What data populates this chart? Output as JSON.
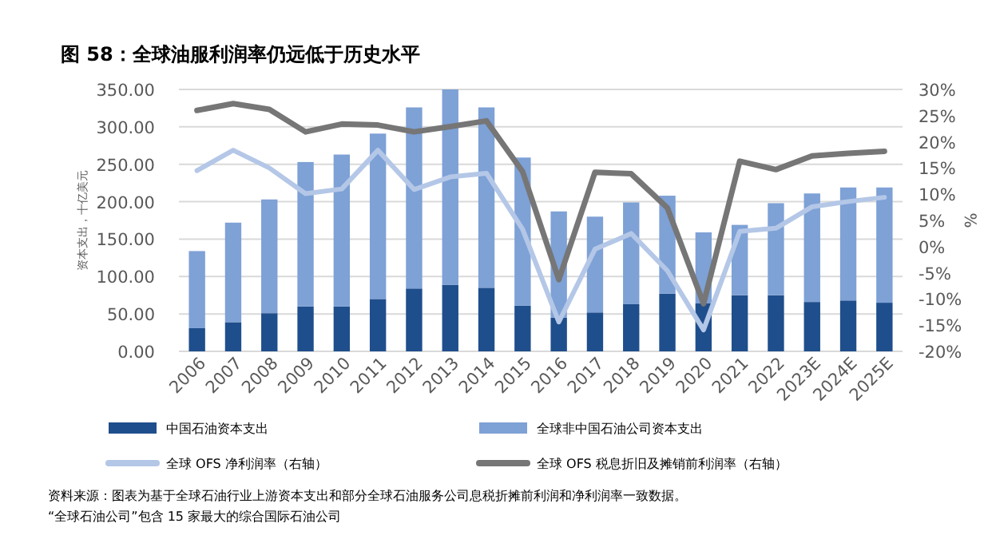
{
  "chart_data": {
    "type": "bar",
    "title": "图 58：全球油服利润率仍远低于历史水平",
    "ylabel": "资本支出，十亿美元",
    "y2label": "%",
    "categories": [
      "2006",
      "2007",
      "2008",
      "2009",
      "2010",
      "2011",
      "2012",
      "2013",
      "2014",
      "2015",
      "2016",
      "2017",
      "2018",
      "2019",
      "2020",
      "2021",
      "2022",
      "2023E",
      "2024E",
      "2025E"
    ],
    "stacked": true,
    "series": [
      {
        "name": "中国石油资本支出",
        "color": "#1f4e8c",
        "values": [
          31,
          39,
          51,
          60,
          60,
          70,
          84,
          89,
          85,
          61,
          45,
          52,
          63,
          77,
          64,
          75,
          75,
          66,
          68,
          65
        ]
      },
      {
        "name": "全球非中国石油公司资本支出",
        "color": "#7ea1d6",
        "values": [
          103,
          133,
          152,
          193,
          203,
          221,
          242,
          261,
          241,
          198,
          142,
          128,
          136,
          131,
          95,
          94,
          123,
          145,
          151,
          154
        ]
      },
      {
        "name": "全球 OFS 净利润率（右轴）",
        "type": "line",
        "axis": "y2",
        "color": "#b4c7e7",
        "values": [
          14.5,
          18.4,
          15.0,
          10.1,
          11.0,
          18.4,
          10.9,
          13.3,
          14.0,
          3.3,
          -14.4,
          -0.5,
          2.5,
          -4.6,
          -15.9,
          2.9,
          3.5,
          7.6,
          8.6,
          9.4
        ]
      },
      {
        "name": "全球 OFS 税息折旧及摊销前利润率（右轴）",
        "type": "line",
        "axis": "y2",
        "color": "#767676",
        "values": [
          26.0,
          27.3,
          26.2,
          21.9,
          23.4,
          23.2,
          21.9,
          22.9,
          24.0,
          14.3,
          -6.3,
          14.2,
          13.9,
          7.4,
          -10.9,
          16.3,
          14.7,
          17.3,
          17.8,
          18.2
        ]
      }
    ],
    "ylim": [
      0,
      350
    ],
    "yticks": [
      {
        "value": 0,
        "label": "0.00"
      },
      {
        "value": 50,
        "label": "50.00"
      },
      {
        "value": 100,
        "label": "100.00"
      },
      {
        "value": 150,
        "label": "150.00"
      },
      {
        "value": 200,
        "label": "200.00"
      },
      {
        "value": 250,
        "label": "250.00"
      },
      {
        "value": 300,
        "label": "300.00"
      },
      {
        "value": 350,
        "label": "350.00"
      }
    ],
    "y2lim": [
      -20,
      30
    ],
    "y2ticks": [
      {
        "value": -20,
        "label": "-20%"
      },
      {
        "value": -15,
        "label": "-15%"
      },
      {
        "value": -10,
        "label": "-10%"
      },
      {
        "value": -5,
        "label": "-5%"
      },
      {
        "value": 0,
        "label": "0%"
      },
      {
        "value": 5,
        "label": "5%"
      },
      {
        "value": 10,
        "label": "10%"
      },
      {
        "value": 15,
        "label": "15%"
      },
      {
        "value": 20,
        "label": "20%"
      },
      {
        "value": 25,
        "label": "25%"
      },
      {
        "value": 30,
        "label": "30%"
      }
    ],
    "grid": "y",
    "legend": "bottom",
    "annotations": [
      "资料来源：图表为基于全球石油行业上游资本支出和部分全球石油服务公司息税折摊前利润和净利润率一致数据。",
      "“全球石油公司”包含 15 家最大的综合国际石油公司"
    ]
  }
}
